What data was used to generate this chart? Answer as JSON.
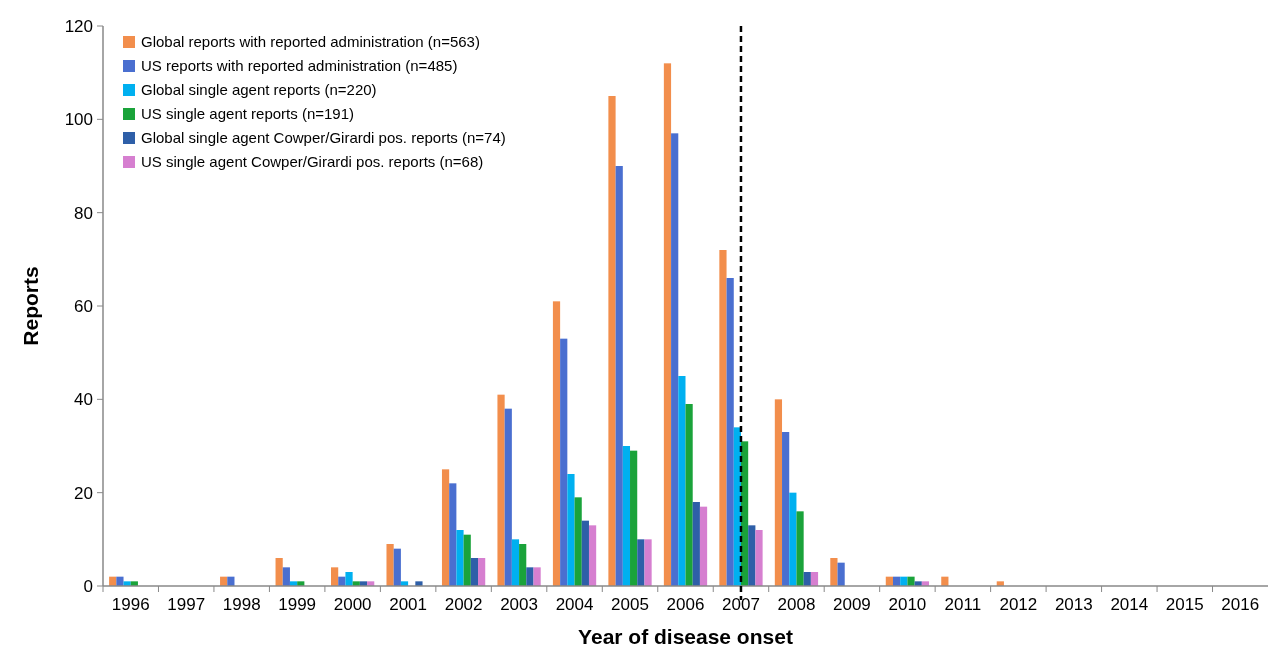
{
  "chart_data": {
    "type": "bar",
    "xlabel": "Year of disease onset",
    "ylabel": "Reports",
    "categories": [
      "1996",
      "1997",
      "1998",
      "1999",
      "2000",
      "2001",
      "2002",
      "2003",
      "2004",
      "2005",
      "2006",
      "2007",
      "2008",
      "2009",
      "2010",
      "2011",
      "2012",
      "2013",
      "2014",
      "2015",
      "2016"
    ],
    "series": [
      {
        "name": "Global reports with reported administration (n=563)",
        "color": "#f28e4c",
        "values": [
          2,
          0,
          2,
          6,
          4,
          9,
          25,
          41,
          61,
          105,
          112,
          72,
          40,
          6,
          2,
          2,
          1,
          0,
          0,
          0,
          0
        ]
      },
      {
        "name": "US reports with reported administration (n=485)",
        "color": "#4a6fd0",
        "values": [
          2,
          0,
          2,
          4,
          2,
          8,
          22,
          38,
          53,
          90,
          97,
          66,
          33,
          5,
          2,
          0,
          0,
          0,
          0,
          0,
          0
        ]
      },
      {
        "name": "Global single agent reports (n=220)",
        "color": "#00b0f0",
        "values": [
          1,
          0,
          0,
          1,
          3,
          1,
          12,
          10,
          24,
          30,
          45,
          34,
          20,
          0,
          2,
          0,
          0,
          0,
          0,
          0,
          0
        ]
      },
      {
        "name": "US single agent reports (n=191)",
        "color": "#1aa33a",
        "values": [
          1,
          0,
          0,
          1,
          1,
          0,
          11,
          9,
          19,
          29,
          39,
          31,
          16,
          0,
          2,
          0,
          0,
          0,
          0,
          0,
          0
        ]
      },
      {
        "name": "Global single agent Cowper/Girardi pos. reports (n=74)",
        "color": "#2e5fa8",
        "values": [
          0,
          0,
          0,
          0,
          1,
          1,
          6,
          4,
          14,
          10,
          18,
          13,
          3,
          0,
          1,
          0,
          0,
          0,
          0,
          0,
          0
        ]
      },
      {
        "name": "US single agent Cowper/Girardi pos. reports (n=68)",
        "color": "#d67fd0",
        "values": [
          0,
          0,
          0,
          0,
          1,
          0,
          6,
          4,
          13,
          10,
          17,
          12,
          3,
          0,
          1,
          0,
          0,
          0,
          0,
          0,
          0
        ]
      }
    ],
    "ylim": [
      0,
      120
    ],
    "yticks": [
      0,
      20,
      40,
      60,
      80,
      100,
      120
    ],
    "grid": false,
    "legend": "top left",
    "ref_lines": [
      {
        "axis": "x",
        "value": "2007",
        "color": "#000000",
        "line_style": "dashed"
      }
    ]
  }
}
